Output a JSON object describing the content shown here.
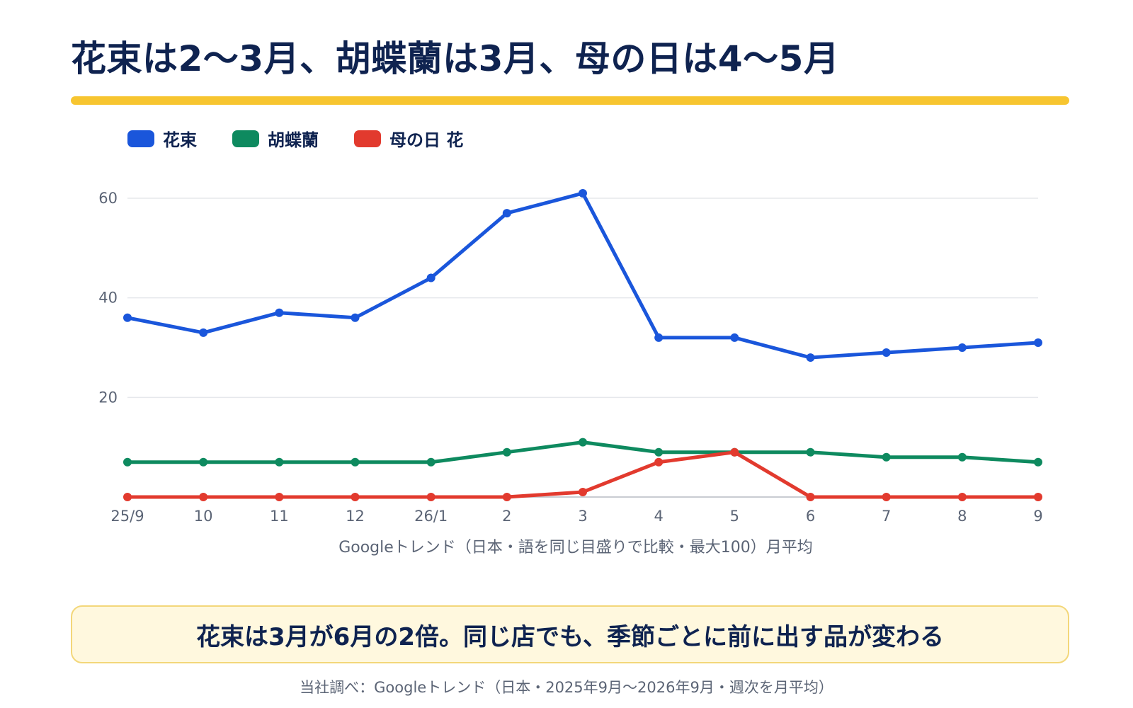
{
  "title": "花束は2〜3月、胡蝶蘭は3月、母の日は4〜5月",
  "callout": "花束は3月が6月の2倍。同じ店でも、季節ごとに前に出す品が変わる",
  "source": "当社調べ：Googleトレンド（日本・2025年9月〜2026年9月・週次を月平均）",
  "chart_data": {
    "type": "line",
    "title": "花束は2〜3月、胡蝶蘭は3月、母の日は4〜5月",
    "xlabel": "Googleトレンド（日本・語を同じ目盛りで比較・最大100）月平均",
    "ylabel": "",
    "categories": [
      "25/9",
      "10",
      "11",
      "12",
      "26/1",
      "2",
      "3",
      "4",
      "5",
      "6",
      "7",
      "8",
      "9"
    ],
    "ylim": [
      0,
      60
    ],
    "yticks": [
      20,
      40,
      60
    ],
    "grid": true,
    "legend_position": "top-left",
    "series": [
      {
        "name": "花束",
        "color": "#1a56db",
        "values": [
          36,
          33,
          37,
          36,
          44,
          57,
          61,
          32,
          32,
          28,
          29,
          30,
          31
        ]
      },
      {
        "name": "胡蝶蘭",
        "color": "#0e8a5f",
        "values": [
          7,
          7,
          7,
          7,
          7,
          9,
          11,
          9,
          9,
          9,
          8,
          8,
          7
        ]
      },
      {
        "name": "母の日 花",
        "color": "#e23a2e",
        "values": [
          0,
          0,
          0,
          0,
          0,
          0,
          1,
          7,
          9,
          0,
          0,
          0,
          0
        ]
      }
    ]
  }
}
